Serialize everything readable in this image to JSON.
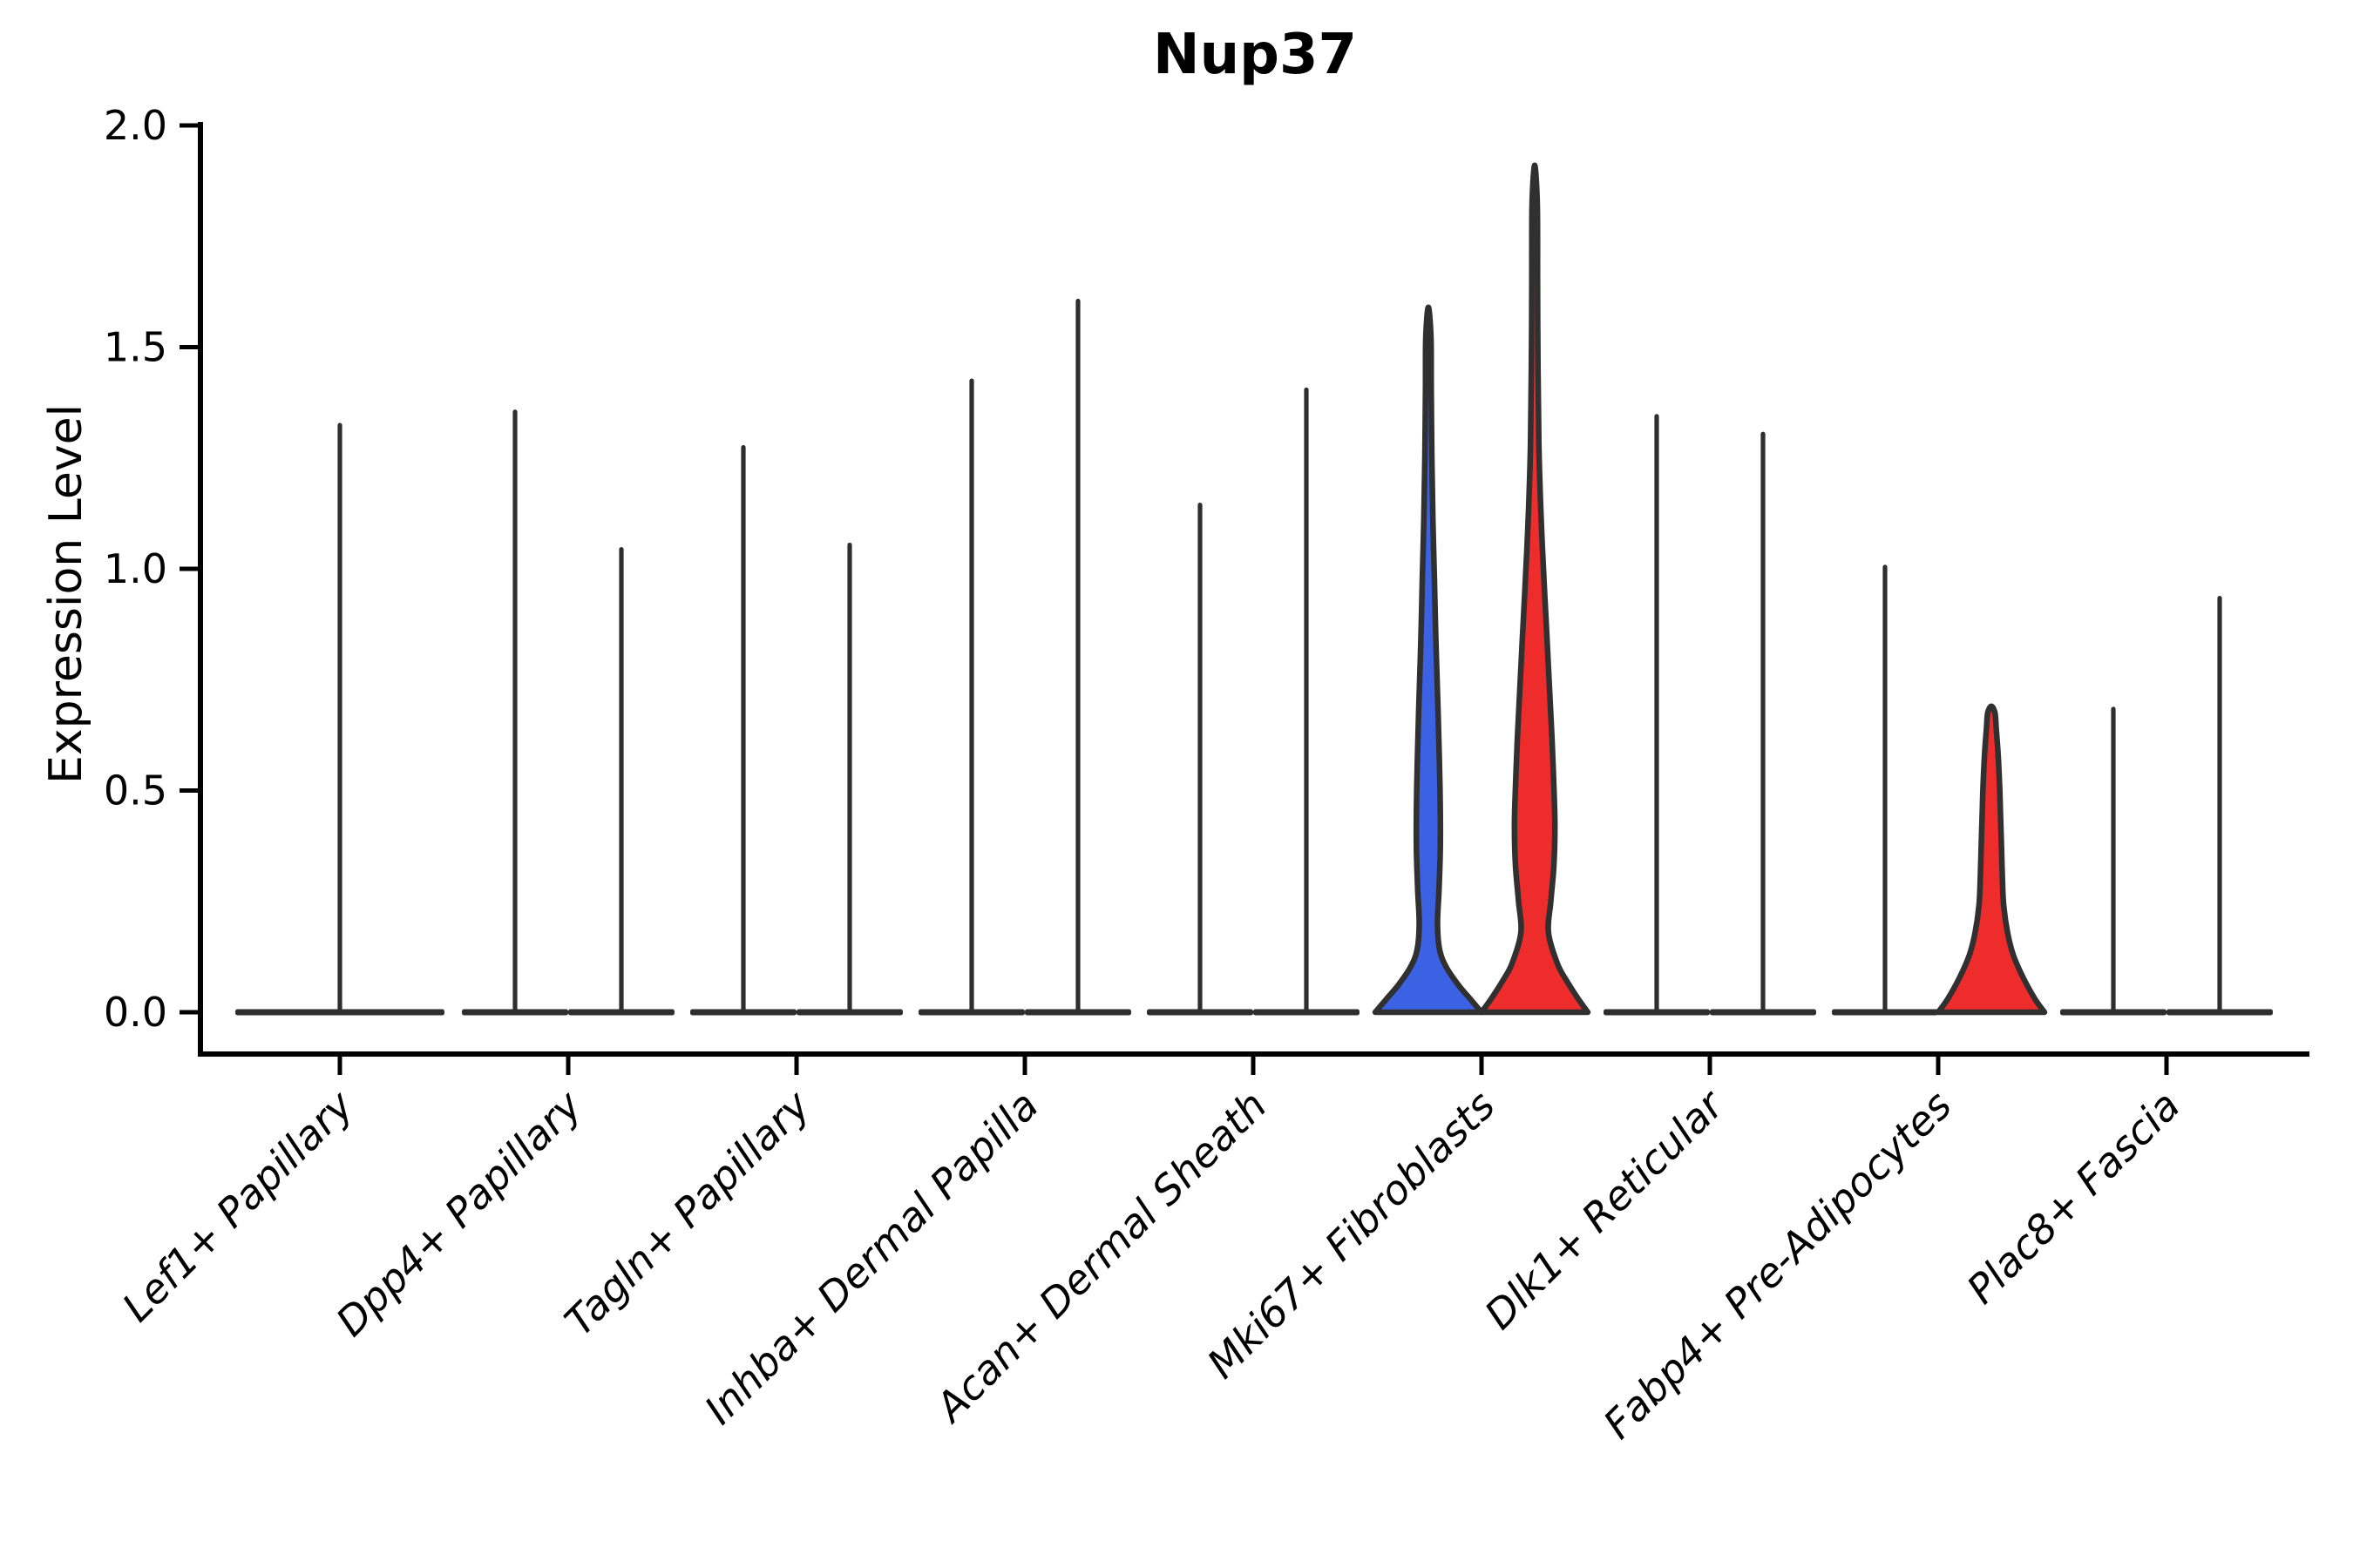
{
  "title": "Nup37",
  "ylabel": "Expression Level",
  "colors": {
    "background": "#ffffff",
    "axis": "#000000",
    "violin_outline": "#303030",
    "spike": "#2e2e2e",
    "blue_fill": "#3b62e2",
    "red_fill": "#ee2c2c"
  },
  "chart_data": {
    "type": "violin",
    "title": "Nup37",
    "xlabel": "",
    "ylabel": "Expression Level",
    "ylim": [
      0.0,
      2.0
    ],
    "yticks": [
      "0.0",
      "0.5",
      "1.0",
      "1.5",
      "2.0"
    ],
    "ytick_values": [
      0.0,
      0.5,
      1.0,
      1.5,
      2.0
    ],
    "grid": false,
    "legend": "none",
    "categories": [
      "Lef1+ Papillary",
      "Dpp4+ Papillary",
      "Tagln+ Papillary",
      "Inhba+ Dermal Papilla",
      "Acan+ Dermal Sheath",
      "Mki67+ Fibroblasts",
      "Dlk1+ Reticular",
      "Fabp4+ Pre-Adipocytes",
      "Plac8+ Fascia"
    ],
    "violins": [
      {
        "category_index": 0,
        "category": "Lef1+ Papillary",
        "position": "center",
        "max": 1.33,
        "shape": "spike",
        "fill": null,
        "base_halfwidth": 120
      },
      {
        "category_index": 1,
        "category": "Dpp4+ Papillary",
        "position": "left",
        "max": 1.36,
        "shape": "spike",
        "fill": null
      },
      {
        "category_index": 1,
        "category": "Dpp4+ Papillary",
        "position": "right",
        "max": 1.05,
        "shape": "spike",
        "fill": null
      },
      {
        "category_index": 2,
        "category": "Tagln+ Papillary",
        "position": "left",
        "max": 1.28,
        "shape": "spike",
        "fill": null
      },
      {
        "category_index": 2,
        "category": "Tagln+ Papillary",
        "position": "right",
        "max": 1.06,
        "shape": "spike",
        "fill": null
      },
      {
        "category_index": 3,
        "category": "Inhba+ Dermal Papilla",
        "position": "left",
        "max": 1.43,
        "shape": "spike",
        "fill": null
      },
      {
        "category_index": 3,
        "category": "Inhba+ Dermal Papilla",
        "position": "right",
        "max": 1.61,
        "shape": "spike",
        "fill": null
      },
      {
        "category_index": 4,
        "category": "Acan+ Dermal Sheath",
        "position": "left",
        "max": 1.15,
        "shape": "spike",
        "fill": null
      },
      {
        "category_index": 4,
        "category": "Acan+ Dermal Sheath",
        "position": "right",
        "max": 1.41,
        "shape": "spike",
        "fill": null
      },
      {
        "category_index": 5,
        "category": "Mki67+ Fibroblasts",
        "position": "left",
        "max": 1.59,
        "shape": "violin",
        "fill": "#3b62e2",
        "profile": [
          [
            0,
            61
          ],
          [
            0.03,
            48
          ],
          [
            0.06,
            35
          ],
          [
            0.1,
            21
          ],
          [
            0.14,
            13
          ],
          [
            0.2,
            10.5
          ],
          [
            0.28,
            12.3
          ],
          [
            0.37,
            13.7
          ],
          [
            0.47,
            13.6
          ],
          [
            0.57,
            12.6
          ],
          [
            0.7,
            10.8
          ],
          [
            0.84,
            8.6
          ],
          [
            0.98,
            6.9
          ],
          [
            1.11,
            5.2
          ],
          [
            1.25,
            4.0
          ],
          [
            1.4,
            3.3
          ],
          [
            1.52,
            3.0
          ]
        ]
      },
      {
        "category_index": 5,
        "category": "Mki67+ Fibroblasts",
        "position": "right",
        "max": 1.91,
        "shape": "violin",
        "fill": "#ee2c2c",
        "profile": [
          [
            0,
            61
          ],
          [
            0.03,
            50
          ],
          [
            0.07,
            37
          ],
          [
            0.11,
            26
          ],
          [
            0.18,
            15.8
          ],
          [
            0.25,
            18.5
          ],
          [
            0.33,
            22
          ],
          [
            0.42,
            23.2
          ],
          [
            0.52,
            21.8
          ],
          [
            0.62,
            19.8
          ],
          [
            0.73,
            17
          ],
          [
            0.84,
            14.2
          ],
          [
            0.95,
            11.3
          ],
          [
            1.05,
            8.8
          ],
          [
            1.14,
            6.9
          ],
          [
            1.28,
            4.8
          ],
          [
            1.45,
            3.8
          ],
          [
            1.65,
            3.3
          ],
          [
            1.82,
            3.0
          ]
        ]
      },
      {
        "category_index": 6,
        "category": "Dlk1+ Reticular",
        "position": "left",
        "max": 1.35,
        "shape": "spike",
        "fill": null
      },
      {
        "category_index": 6,
        "category": "Dlk1+ Reticular",
        "position": "right",
        "max": 1.31,
        "shape": "spike",
        "fill": null
      },
      {
        "category_index": 7,
        "category": "Fabp4+ Pre-Adipocytes",
        "position": "left",
        "max": 1.01,
        "shape": "spike",
        "fill": null
      },
      {
        "category_index": 7,
        "category": "Fabp4+ Pre-Adipocytes",
        "position": "right",
        "max": 0.69,
        "shape": "violin",
        "fill": "#ee2c2c",
        "profile": [
          [
            0,
            61
          ],
          [
            0.03,
            50
          ],
          [
            0.08,
            36
          ],
          [
            0.13,
            25
          ],
          [
            0.18,
            18.6
          ],
          [
            0.24,
            14.2
          ],
          [
            0.3,
            12.7
          ],
          [
            0.37,
            11.7
          ],
          [
            0.44,
            10.6
          ],
          [
            0.51,
            9.5
          ],
          [
            0.58,
            7.8
          ],
          [
            0.64,
            5.6
          ],
          [
            0.675,
            4.2
          ]
        ]
      },
      {
        "category_index": 8,
        "category": "Plac8+ Fascia",
        "position": "left",
        "max": 0.69,
        "shape": "spike",
        "fill": null
      },
      {
        "category_index": 8,
        "category": "Plac8+ Fascia",
        "position": "right",
        "max": 0.94,
        "shape": "spike",
        "fill": null
      }
    ]
  }
}
